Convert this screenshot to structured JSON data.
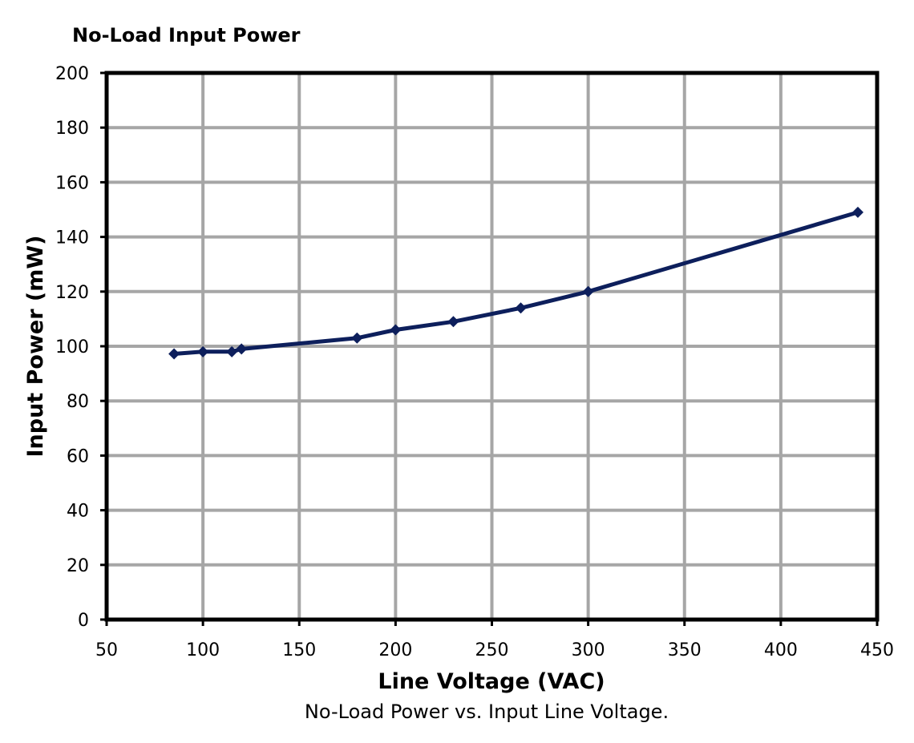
{
  "chart_data": {
    "type": "line",
    "title": "No-Load Input Power",
    "xlabel": "Line Voltage (VAC)",
    "ylabel": "Input Power (mW)",
    "caption": "No-Load Power vs. Input Line Voltage.",
    "xlim": [
      50,
      450
    ],
    "ylim": [
      0,
      200
    ],
    "x_ticks": [
      50,
      100,
      150,
      200,
      250,
      300,
      350,
      400,
      450
    ],
    "y_ticks": [
      0,
      20,
      40,
      60,
      80,
      100,
      120,
      140,
      160,
      180,
      200
    ],
    "grid": true,
    "series": [
      {
        "color": "#0d1f5c",
        "marker": "diamond",
        "x": [
          85,
          100,
          115,
          120,
          180,
          200,
          230,
          265,
          300,
          440
        ],
        "y": [
          97.2,
          98.0,
          98.0,
          99.0,
          103.0,
          106.0,
          109.0,
          114.0,
          120.0,
          149.0
        ]
      }
    ]
  }
}
